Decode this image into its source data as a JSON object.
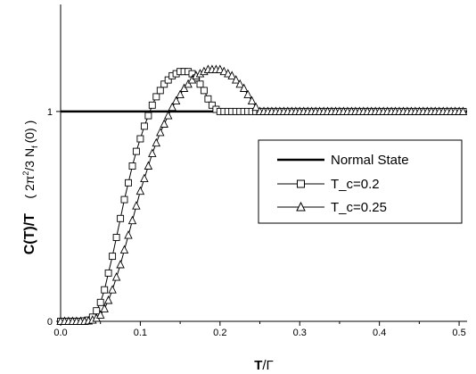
{
  "chart_data": {
    "type": "line",
    "title": "",
    "xlabel": "T/Γ",
    "xlabel_main": "T",
    "xlabel_rest": "/Γ",
    "ylabel": "C(T)/T   ( 2π²/3 N_f (0) )",
    "ylabel_main": "C(T)/T",
    "ylabel_unit_open": "( 2π",
    "ylabel_unit_sup": "2",
    "ylabel_unit_mid": "/3 N",
    "ylabel_unit_sub": "f",
    "ylabel_unit_close": "(0) )",
    "xlim": [
      0.0,
      0.51
    ],
    "ylim": [
      0.0,
      1.51
    ],
    "x_ticks": [
      0.0,
      0.1,
      0.2,
      0.3,
      0.4,
      0.5
    ],
    "x_tick_labels": [
      "0.0",
      "0.1",
      "0.2",
      "0.3",
      "0.4",
      "0.5"
    ],
    "y_ticks": [
      0,
      1
    ],
    "y_tick_labels": [
      "0",
      "1"
    ],
    "grid": false,
    "legend": "center-right",
    "series": [
      {
        "name": "Normal State",
        "marker": "none",
        "x": [
          0.0,
          0.51
        ],
        "y": [
          1.0,
          1.0
        ]
      },
      {
        "name": "T_c=0.2",
        "marker": "square",
        "x": [
          0.0,
          0.005,
          0.01,
          0.015,
          0.02,
          0.025,
          0.03,
          0.035,
          0.04,
          0.045,
          0.05,
          0.055,
          0.06,
          0.065,
          0.07,
          0.075,
          0.08,
          0.085,
          0.09,
          0.095,
          0.1,
          0.105,
          0.11,
          0.115,
          0.12,
          0.125,
          0.13,
          0.135,
          0.14,
          0.145,
          0.15,
          0.155,
          0.16,
          0.165,
          0.17,
          0.175,
          0.18,
          0.185,
          0.19,
          0.195,
          0.2,
          0.205,
          0.21,
          0.215,
          0.22,
          0.225,
          0.23,
          0.235,
          0.24,
          0.245,
          0.25,
          0.255,
          0.26,
          0.265,
          0.27,
          0.275,
          0.28,
          0.285,
          0.29,
          0.295,
          0.3,
          0.305,
          0.31,
          0.315,
          0.32,
          0.325,
          0.33,
          0.335,
          0.34,
          0.345,
          0.35,
          0.355,
          0.36,
          0.365,
          0.37,
          0.375,
          0.38,
          0.385,
          0.39,
          0.395,
          0.4,
          0.405,
          0.41,
          0.415,
          0.42,
          0.425,
          0.43,
          0.435,
          0.44,
          0.445,
          0.45,
          0.455,
          0.46,
          0.465,
          0.47,
          0.475,
          0.48,
          0.485,
          0.49,
          0.495,
          0.5,
          0.505
        ],
        "y": [
          0.0,
          0.0,
          0.0,
          0.0,
          0.0,
          0.0,
          0.002,
          0.006,
          0.02,
          0.05,
          0.09,
          0.15,
          0.23,
          0.31,
          0.4,
          0.49,
          0.58,
          0.66,
          0.74,
          0.81,
          0.87,
          0.93,
          0.98,
          1.03,
          1.07,
          1.1,
          1.13,
          1.15,
          1.17,
          1.18,
          1.19,
          1.19,
          1.19,
          1.18,
          1.16,
          1.13,
          1.1,
          1.06,
          1.03,
          1.01,
          1.0,
          1.0,
          1.0,
          1.0,
          1.0,
          1.0,
          1.0,
          1.0,
          1.0,
          1.0,
          1.0,
          1.0,
          1.0,
          1.0,
          1.0,
          1.0,
          1.0,
          1.0,
          1.0,
          1.0,
          1.0,
          1.0,
          1.0,
          1.0,
          1.0,
          1.0,
          1.0,
          1.0,
          1.0,
          1.0,
          1.0,
          1.0,
          1.0,
          1.0,
          1.0,
          1.0,
          1.0,
          1.0,
          1.0,
          1.0,
          1.0,
          1.0,
          1.0,
          1.0,
          1.0,
          1.0,
          1.0,
          1.0,
          1.0,
          1.0,
          1.0,
          1.0,
          1.0,
          1.0,
          1.0,
          1.0,
          1.0,
          1.0,
          1.0,
          1.0,
          1.0,
          1.0
        ]
      },
      {
        "name": "T_c=0.25",
        "marker": "triangle",
        "x": [
          0.0,
          0.005,
          0.01,
          0.015,
          0.02,
          0.025,
          0.03,
          0.035,
          0.04,
          0.045,
          0.05,
          0.055,
          0.06,
          0.065,
          0.07,
          0.075,
          0.08,
          0.085,
          0.09,
          0.095,
          0.1,
          0.105,
          0.11,
          0.115,
          0.12,
          0.125,
          0.13,
          0.135,
          0.14,
          0.145,
          0.15,
          0.155,
          0.16,
          0.165,
          0.17,
          0.175,
          0.18,
          0.185,
          0.19,
          0.195,
          0.2,
          0.205,
          0.21,
          0.215,
          0.22,
          0.225,
          0.23,
          0.235,
          0.24,
          0.245,
          0.25,
          0.255,
          0.26,
          0.265,
          0.27,
          0.275,
          0.28,
          0.285,
          0.29,
          0.295,
          0.3,
          0.305,
          0.31,
          0.315,
          0.32,
          0.325,
          0.33,
          0.335,
          0.34,
          0.345,
          0.35,
          0.355,
          0.36,
          0.365,
          0.37,
          0.375,
          0.38,
          0.385,
          0.39,
          0.395,
          0.4,
          0.405,
          0.41,
          0.415,
          0.42,
          0.425,
          0.43,
          0.435,
          0.44,
          0.445,
          0.45,
          0.455,
          0.46,
          0.465,
          0.47,
          0.475,
          0.48,
          0.485,
          0.49,
          0.495,
          0.5,
          0.505
        ],
        "y": [
          0.0,
          0.0,
          0.0,
          0.0,
          0.0,
          0.0,
          0.0,
          0.002,
          0.006,
          0.015,
          0.03,
          0.06,
          0.1,
          0.15,
          0.21,
          0.27,
          0.34,
          0.41,
          0.48,
          0.55,
          0.62,
          0.68,
          0.74,
          0.8,
          0.85,
          0.9,
          0.94,
          0.98,
          1.02,
          1.05,
          1.08,
          1.11,
          1.13,
          1.15,
          1.17,
          1.18,
          1.19,
          1.2,
          1.2,
          1.2,
          1.2,
          1.19,
          1.18,
          1.17,
          1.15,
          1.13,
          1.11,
          1.08,
          1.05,
          1.02,
          1.0,
          1.0,
          1.0,
          1.0,
          1.0,
          1.0,
          1.0,
          1.0,
          1.0,
          1.0,
          1.0,
          1.0,
          1.0,
          1.0,
          1.0,
          1.0,
          1.0,
          1.0,
          1.0,
          1.0,
          1.0,
          1.0,
          1.0,
          1.0,
          1.0,
          1.0,
          1.0,
          1.0,
          1.0,
          1.0,
          1.0,
          1.0,
          1.0,
          1.0,
          1.0,
          1.0,
          1.0,
          1.0,
          1.0,
          1.0,
          1.0,
          1.0,
          1.0,
          1.0,
          1.0,
          1.0,
          1.0,
          1.0,
          1.0,
          1.0,
          1.0,
          1.0
        ]
      }
    ]
  }
}
